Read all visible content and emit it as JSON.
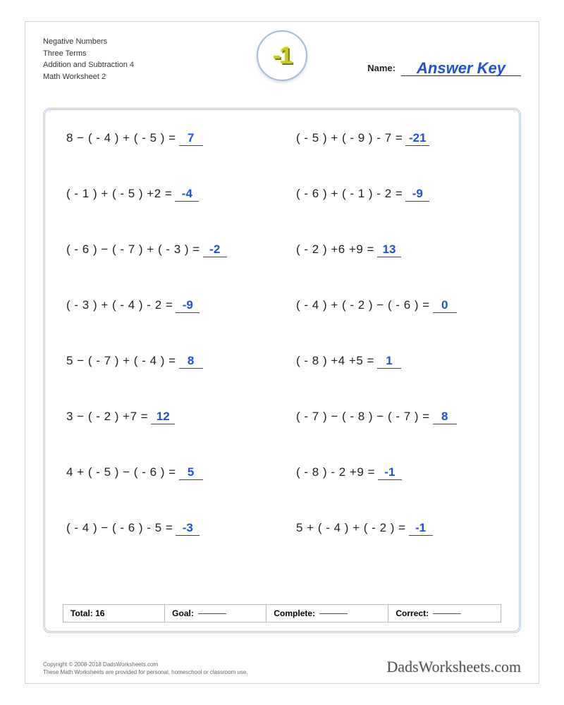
{
  "header": {
    "line1": "Negative Numbers",
    "line2": "Three Terms",
    "line3": "Addition and Subtraction 4",
    "line4": "Math Worksheet 2",
    "badge_text": "-1",
    "name_label": "Name:",
    "answer_key_text": "Answer Key"
  },
  "problems": [
    {
      "expr": "8 − ( - 4 ) + ( - 5 ) =",
      "ans": "7"
    },
    {
      "expr": "( - 5 ) + ( - 9 ) - 7 =",
      "ans": "-21"
    },
    {
      "expr": "( - 1 ) + ( - 5 ) +2 =",
      "ans": "-4"
    },
    {
      "expr": "( - 6 ) + ( - 1 ) - 2 =",
      "ans": "-9"
    },
    {
      "expr": "( - 6 ) − ( - 7 ) + ( - 3 ) =",
      "ans": "-2"
    },
    {
      "expr": "( - 2 ) +6 +9 =",
      "ans": "13"
    },
    {
      "expr": "( - 3 ) + ( - 4 ) - 2 =",
      "ans": "-9"
    },
    {
      "expr": "( - 4 ) + ( - 2 ) − ( - 6 ) =",
      "ans": "0"
    },
    {
      "expr": "5 − ( - 7 ) + ( - 4 ) =",
      "ans": "8"
    },
    {
      "expr": "( - 8 ) +4 +5 =",
      "ans": "1"
    },
    {
      "expr": "3 − ( - 2 ) +7 =",
      "ans": "12"
    },
    {
      "expr": "( - 7 ) − ( - 8 ) − ( - 7 ) =",
      "ans": "8"
    },
    {
      "expr": "4 + ( - 5 ) − ( - 6 ) =",
      "ans": "5"
    },
    {
      "expr": "( - 8 ) - 2 +9 =",
      "ans": "-1"
    },
    {
      "expr": "( - 4 ) − ( - 6 ) - 5 =",
      "ans": "-3"
    },
    {
      "expr": "5 + ( - 4 ) + ( - 2 ) =",
      "ans": "-1"
    }
  ],
  "scorebar": {
    "total_label": "Total: 16",
    "goal_label": "Goal:",
    "complete_label": "Complete:",
    "correct_label": "Correct:"
  },
  "footer": {
    "copyright1": "Copyright © 2008-2018 DadsWorksheets.com",
    "copyright2": "These Math Worksheets are provided for personal, homeschool or classroom use.",
    "brand": "DadsWorksheets.com"
  },
  "style": {
    "answer_color": "#2050d8",
    "frame_border_color": "#b8c4e8",
    "badge_text_color": "#c9c92e",
    "page_bg": "#ffffff",
    "text_color": "#222222",
    "problem_fontsize": 17,
    "header_fontsize": 11,
    "grid_rows": 8,
    "grid_cols": 2
  }
}
